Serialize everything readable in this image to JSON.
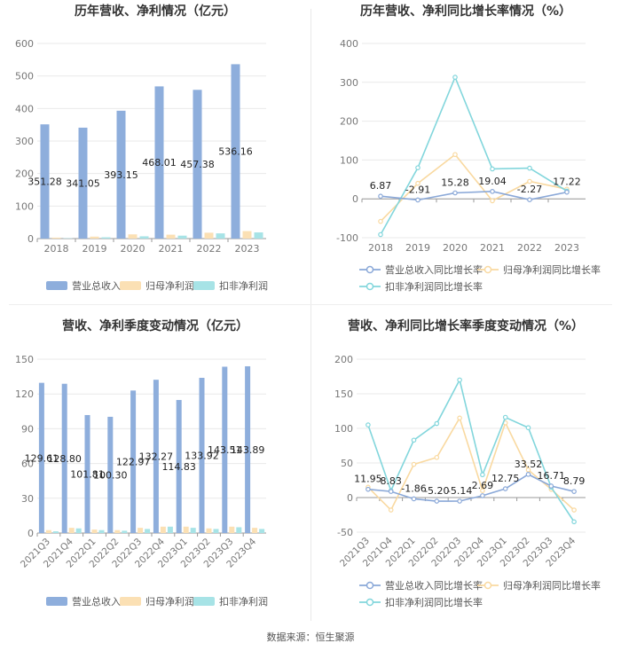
{
  "source": "数据来源：恒生聚源",
  "colors": {
    "revenue": "#8eaedc",
    "net_profit": "#fbe0b4",
    "deducted_profit": "#a7e3e6",
    "revenue_line": "#8aa8d8",
    "net_line": "#f9d9a0",
    "deducted_line": "#82d6dc",
    "grid": "#e9e9e9",
    "axis_text": "#777777"
  },
  "chart_data": [
    {
      "id": "annual_amount",
      "type": "bar",
      "title": "历年营收、净利情况（亿元）",
      "categories": [
        "2018",
        "2019",
        "2020",
        "2021",
        "2022",
        "2023"
      ],
      "ylim": [
        0,
        600
      ],
      "yticks": [
        0,
        100,
        200,
        300,
        400,
        500,
        600
      ],
      "series": [
        {
          "name": "营业总收入",
          "values": [
            351.28,
            341.05,
            393.15,
            468.01,
            457.38,
            536.16
          ],
          "labels": [
            "351.28",
            "341.05",
            "393.15",
            "468.01",
            "457.38",
            "536.16"
          ]
        },
        {
          "name": "归母净利润",
          "values": [
            3,
            6,
            13,
            12,
            18,
            23
          ],
          "labels": []
        },
        {
          "name": "扣非净利润",
          "values": [
            1,
            4,
            7,
            9,
            16,
            19
          ],
          "labels": []
        }
      ]
    },
    {
      "id": "annual_growth",
      "type": "line",
      "title": "历年营收、净利同比增长率情况（%）",
      "categories": [
        "2018",
        "2019",
        "2020",
        "2021",
        "2022",
        "2023"
      ],
      "ylim": [
        -100,
        400
      ],
      "yticks": [
        -100,
        0,
        100,
        200,
        300,
        400
      ],
      "series": [
        {
          "name": "营业总收入同比增长率",
          "values": [
            6.87,
            -2.91,
            15.28,
            19.04,
            -2.27,
            17.22
          ],
          "labels": [
            "6.87",
            "-2.91",
            "15.28",
            "19.04",
            "-2.27",
            "17.22"
          ]
        },
        {
          "name": "归母净利润同比增长率",
          "values": [
            -58,
            40,
            114,
            -5,
            45,
            25
          ],
          "labels": []
        },
        {
          "name": "扣非净利润同比增长率",
          "values": [
            -92,
            80,
            313,
            77,
            79,
            20
          ],
          "labels": []
        }
      ]
    },
    {
      "id": "quarterly_amount",
      "type": "bar",
      "title": "营收、净利季度变动情况（亿元）",
      "categories": [
        "2021Q3",
        "2021Q4",
        "2022Q1",
        "2022Q2",
        "2022Q3",
        "2022Q4",
        "2023Q1",
        "2023Q2",
        "2023Q3",
        "2023Q4"
      ],
      "ylim": [
        0,
        150
      ],
      "yticks": [
        0,
        30,
        60,
        90,
        120,
        150
      ],
      "series": [
        {
          "name": "营业总收入",
          "values": [
            129.61,
            128.8,
            101.81,
            100.3,
            122.97,
            132.27,
            114.83,
            133.92,
            143.51,
            143.89
          ],
          "labels": [
            "129.61",
            "128.80",
            "101.81",
            "100.30",
            "122.97",
            "132.27",
            "114.83",
            "133.92",
            "143.51",
            "143.89"
          ]
        },
        {
          "name": "归母净利润",
          "values": [
            2.5,
            4.5,
            3,
            2.5,
            4.5,
            5.5,
            5.5,
            4,
            5.5,
            4.5
          ],
          "labels": []
        },
        {
          "name": "扣非净利润",
          "values": [
            1.5,
            4,
            2.5,
            2,
            3.5,
            5.5,
            4.5,
            3.5,
            5,
            3.5
          ],
          "labels": []
        }
      ]
    },
    {
      "id": "quarterly_growth",
      "type": "line",
      "title": "营收、净利同比增长率季度变动情况（%）",
      "categories": [
        "2021Q3",
        "2021Q4",
        "2022Q1",
        "2022Q2",
        "2022Q3",
        "2022Q4",
        "2023Q1",
        "2023Q2",
        "2023Q3",
        "2023Q4"
      ],
      "ylim": [
        -50,
        200
      ],
      "yticks": [
        -50,
        0,
        50,
        100,
        150,
        200
      ],
      "series": [
        {
          "name": "营业总收入同比增长率",
          "values": [
            11.95,
            8.83,
            -1.86,
            -5.2,
            -5.14,
            2.69,
            12.75,
            33.52,
            16.71,
            8.79
          ],
          "labels": [
            "11.95",
            "8.83",
            "-1.86",
            "-5.20",
            "-5.14",
            "2.69",
            "12.75",
            "33.52",
            "16.71",
            "8.79"
          ]
        },
        {
          "name": "归母净利润同比增长率",
          "values": [
            15,
            -18,
            48,
            58,
            115,
            10,
            108,
            40,
            12,
            -18
          ],
          "labels": []
        },
        {
          "name": "扣非净利润同比增长率",
          "values": [
            105,
            10,
            83,
            107,
            170,
            33,
            116,
            101,
            15,
            -35
          ],
          "labels": []
        }
      ]
    }
  ]
}
